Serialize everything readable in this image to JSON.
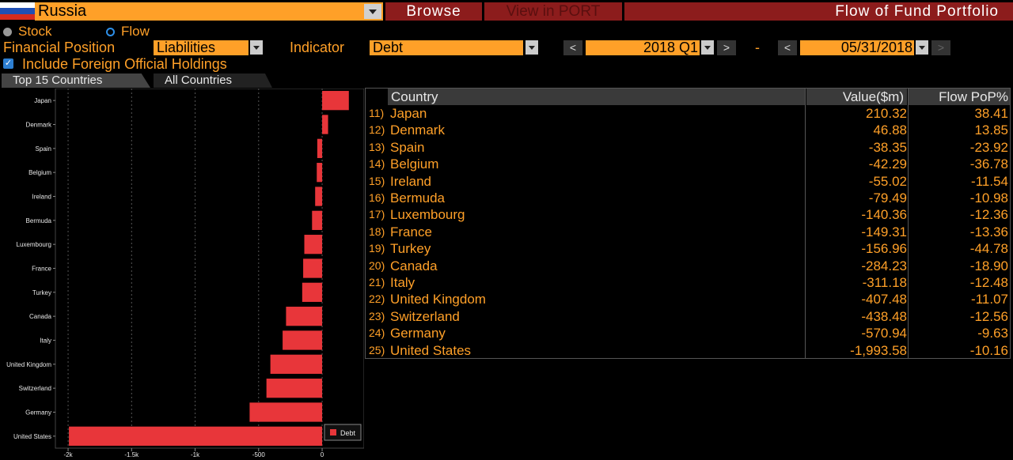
{
  "header": {
    "country": "Russia",
    "buttons": {
      "browse": "Browse",
      "port": "View in PORT"
    },
    "title": "Flow of Fund Portfolio"
  },
  "mode": {
    "stock": "Stock",
    "flow": "Flow",
    "selected": "Flow"
  },
  "filters": {
    "financial_position_label": "Financial Position",
    "financial_position": "Liabilities",
    "indicator_label": "Indicator",
    "indicator": "Debt",
    "period_start": "2018 Q1",
    "separator": "-",
    "period_end": "05/31/2018"
  },
  "include_foreign": {
    "label": "Include Foreign Official Holdings",
    "checked": true
  },
  "tabs": [
    {
      "label": "Top 15 Countries",
      "active": true
    },
    {
      "label": "All Countries",
      "active": false
    }
  ],
  "table": {
    "headers": {
      "country": "Country",
      "value": "Value($m)",
      "pop": "Flow PoP%"
    },
    "rows": [
      {
        "rank": "11)",
        "country": "Japan",
        "value": "210.32",
        "pop": "38.41"
      },
      {
        "rank": "12)",
        "country": "Denmark",
        "value": "46.88",
        "pop": "13.85"
      },
      {
        "rank": "13)",
        "country": "Spain",
        "value": "-38.35",
        "pop": "-23.92"
      },
      {
        "rank": "14)",
        "country": "Belgium",
        "value": "-42.29",
        "pop": "-36.78"
      },
      {
        "rank": "15)",
        "country": "Ireland",
        "value": "-55.02",
        "pop": "-11.54"
      },
      {
        "rank": "16)",
        "country": "Bermuda",
        "value": "-79.49",
        "pop": "-10.98"
      },
      {
        "rank": "17)",
        "country": "Luxembourg",
        "value": "-140.36",
        "pop": "-12.36"
      },
      {
        "rank": "18)",
        "country": "France",
        "value": "-149.31",
        "pop": "-13.36"
      },
      {
        "rank": "19)",
        "country": "Turkey",
        "value": "-156.96",
        "pop": "-44.78"
      },
      {
        "rank": "20)",
        "country": "Canada",
        "value": "-284.23",
        "pop": "-18.90"
      },
      {
        "rank": "21)",
        "country": "Italy",
        "value": "-311.18",
        "pop": "-12.48"
      },
      {
        "rank": "22)",
        "country": "United Kingdom",
        "value": "-407.48",
        "pop": "-11.07"
      },
      {
        "rank": "23)",
        "country": "Switzerland",
        "value": "-438.48",
        "pop": "-12.56"
      },
      {
        "rank": "24)",
        "country": "Germany",
        "value": "-570.94",
        "pop": "-9.63"
      },
      {
        "rank": "25)",
        "country": "United States",
        "value": "-1,993.58",
        "pop": "-10.16"
      }
    ]
  },
  "chart_data": {
    "type": "bar",
    "orientation": "horizontal",
    "categories": [
      "Japan",
      "Denmark",
      "Spain",
      "Belgium",
      "Ireland",
      "Bermuda",
      "Luxembourg",
      "France",
      "Turkey",
      "Canada",
      "Italy",
      "United Kingdom",
      "Switzerland",
      "Germany",
      "United States"
    ],
    "series": [
      {
        "name": "Debt",
        "values": [
          210.32,
          46.88,
          -38.35,
          -42.29,
          -55.02,
          -79.49,
          -140.36,
          -149.31,
          -156.96,
          -284.23,
          -311.18,
          -407.48,
          -438.48,
          -570.94,
          -1993.58
        ]
      }
    ],
    "xlim": [
      -2100,
      330
    ],
    "xticks": [
      -2000,
      -1500,
      -1000,
      -500,
      0
    ],
    "xtick_labels": [
      "-2k",
      "-1.5k",
      "-1k",
      "-500",
      "0"
    ],
    "grid": true,
    "legend_position": "bottom-right",
    "color": "#e8363a"
  }
}
